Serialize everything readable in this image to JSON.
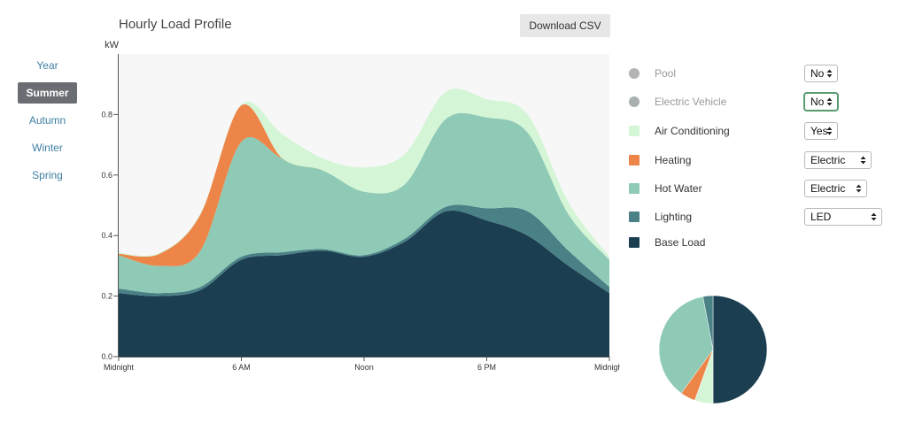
{
  "nav": {
    "seasons": [
      {
        "label": "Year",
        "active": false
      },
      {
        "label": "Summer",
        "active": true
      },
      {
        "label": "Autumn",
        "active": false
      },
      {
        "label": "Winter",
        "active": false
      },
      {
        "label": "Spring",
        "active": false
      }
    ]
  },
  "header": {
    "title": "Hourly Load Profile",
    "download_label": "Download CSV"
  },
  "legend": [
    {
      "key": "pool",
      "label": "Pool",
      "color": "#b3b3b3",
      "label_color": "#999999",
      "control": "No"
    },
    {
      "key": "ev",
      "label": "Electric Vehicle",
      "color": "#a9b0b0",
      "label_color": "#999999",
      "control": "No"
    },
    {
      "key": "ac",
      "label": "Air Conditioning",
      "color": "#d4f5d6",
      "label_color": "#333333",
      "control": "Yes"
    },
    {
      "key": "heating",
      "label": "Heating",
      "color": "#ed8548",
      "label_color": "#333333",
      "control": "Electric"
    },
    {
      "key": "hot_water",
      "label": "Hot Water",
      "color": "#8ecab5",
      "label_color": "#333333",
      "control": "Electric"
    },
    {
      "key": "lighting",
      "label": "Lighting",
      "color": "#4a8186",
      "label_color": "#333333",
      "control": "LED"
    },
    {
      "key": "base",
      "label": "Base Load",
      "color": "#1b3e51",
      "label_color": "#333333",
      "control": null
    }
  ],
  "chart_data": [
    {
      "type": "area",
      "stacked": true,
      "ylabel": "kW",
      "ylim": [
        0,
        1.0
      ],
      "yticks": [
        0.0,
        0.2,
        0.4,
        0.6,
        0.8
      ],
      "ytick_labels": [
        "0.0",
        "0.2",
        "0.4",
        "0.6",
        "0.8"
      ],
      "x": [
        0,
        2,
        4,
        6,
        8,
        10,
        12,
        14,
        16,
        18,
        20,
        22,
        24
      ],
      "xticks": [
        0,
        6,
        12,
        18,
        24
      ],
      "xtick_labels": [
        "Midnight",
        "6 AM",
        "Noon",
        "6 PM",
        "Midnight"
      ],
      "background": "#f7f7f7",
      "series": [
        {
          "key": "base",
          "name": "Base Load",
          "color": "#1b3e51",
          "values": [
            0.21,
            0.2,
            0.22,
            0.32,
            0.335,
            0.35,
            0.33,
            0.38,
            0.48,
            0.45,
            0.4,
            0.3,
            0.21
          ]
        },
        {
          "key": "lighting",
          "name": "Lighting",
          "color": "#4a8186",
          "values": [
            0.015,
            0.01,
            0.01,
            0.01,
            0.01,
            0.005,
            0.005,
            0.01,
            0.015,
            0.04,
            0.08,
            0.05,
            0.02
          ]
        },
        {
          "key": "hot_water",
          "name": "Hot Water",
          "color": "#8ecab5",
          "values": [
            0.11,
            0.09,
            0.12,
            0.38,
            0.31,
            0.26,
            0.21,
            0.18,
            0.29,
            0.3,
            0.26,
            0.12,
            0.09
          ]
        },
        {
          "key": "heating",
          "name": "Heating",
          "color": "#ed8548",
          "values": [
            0.005,
            0.04,
            0.12,
            0.12,
            0.0,
            0.0,
            0.0,
            0.0,
            0.0,
            0.0,
            0.0,
            0.0,
            0.0
          ]
        },
        {
          "key": "ac",
          "name": "Air Conditioning",
          "color": "#d4f5d6",
          "values": [
            0.003,
            0.003,
            0.003,
            0.003,
            0.08,
            0.04,
            0.08,
            0.1,
            0.09,
            0.06,
            0.06,
            0.04,
            0.01
          ]
        }
      ]
    },
    {
      "type": "pie",
      "start": "12 o'clock",
      "direction": "clockwise",
      "slices": [
        {
          "key": "base",
          "name": "Base Load",
          "color": "#1b3e51",
          "value": 0.5
        },
        {
          "key": "ac",
          "name": "Air Conditioning",
          "color": "#d4f5d6",
          "value": 0.055
        },
        {
          "key": "heating",
          "name": "Heating",
          "color": "#ed8548",
          "value": 0.045
        },
        {
          "key": "hot_water",
          "name": "Hot Water",
          "color": "#8ecab5",
          "value": 0.37
        },
        {
          "key": "lighting",
          "name": "Lighting",
          "color": "#4a8186",
          "value": 0.03
        }
      ]
    }
  ]
}
